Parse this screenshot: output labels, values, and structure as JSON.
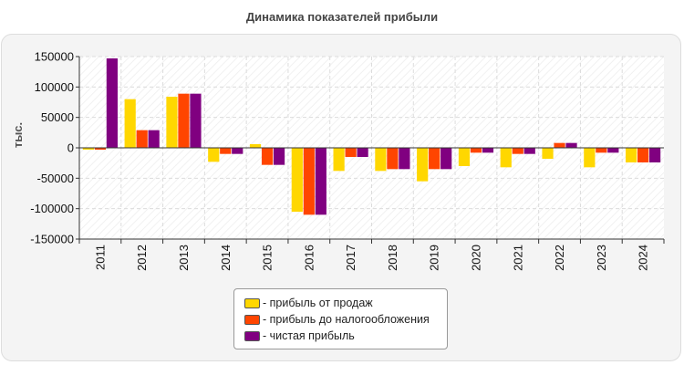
{
  "chart_data": {
    "type": "bar",
    "title": "Динамика показателей прибыли",
    "ylabel": "тыс.",
    "xlabel": "",
    "ylim": [
      -150000,
      150000
    ],
    "yticks": [
      150000,
      100000,
      50000,
      0,
      -50000,
      -100000,
      -150000
    ],
    "ytick_labels": [
      "150000",
      "100000",
      "50000",
      "0",
      "-50000",
      "-100000",
      "-150000"
    ],
    "grid": true,
    "legend_position": "bottom-center",
    "categories": [
      "2011",
      "2012",
      "2013",
      "2014",
      "2015",
      "2016",
      "2017",
      "2018",
      "2019",
      "2020",
      "2021",
      "2022",
      "2023",
      "2024"
    ],
    "series": [
      {
        "name": "- прибыль от продаж",
        "color": "#ffd700",
        "values": [
          -3000,
          80000,
          84000,
          -23000,
          6000,
          -105000,
          -38000,
          -38000,
          -55000,
          -30000,
          -32000,
          -18000,
          -32000,
          -24000
        ]
      },
      {
        "name": "- прибыль до налогообложения",
        "color": "#ff4500",
        "values": [
          -3000,
          29000,
          89000,
          -10000,
          -28000,
          -110000,
          -15000,
          -35000,
          -35000,
          -8000,
          -10000,
          8000,
          -8000,
          -24000
        ]
      },
      {
        "name": "- чистая прибыль",
        "color": "#800080",
        "values": [
          147000,
          29000,
          89000,
          -10000,
          -28000,
          -110000,
          -15000,
          -35000,
          -35000,
          -8000,
          -10000,
          8000,
          -8000,
          -24000
        ]
      }
    ]
  }
}
